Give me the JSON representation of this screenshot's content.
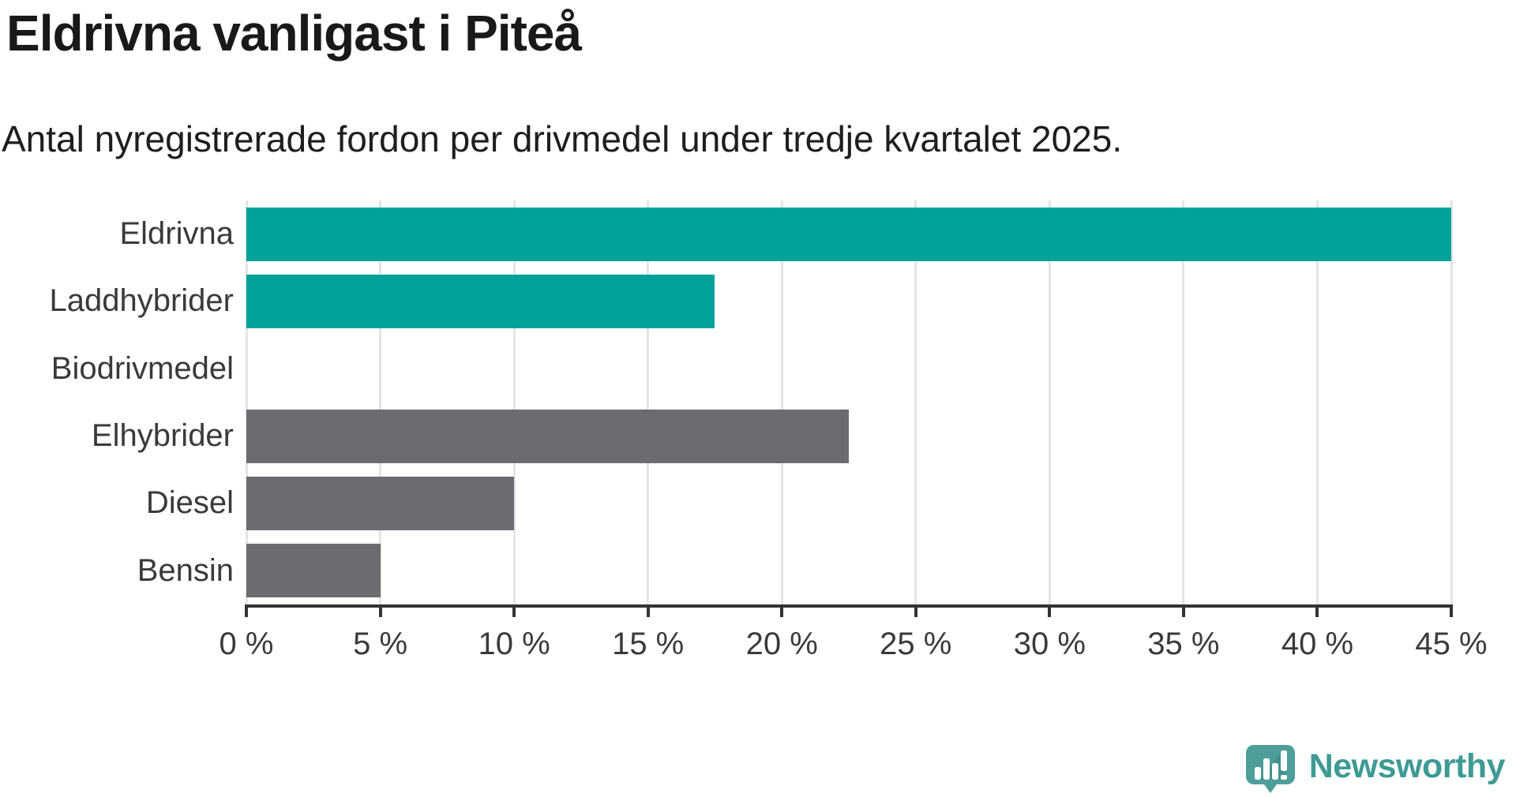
{
  "header": {
    "title": "Eldrivna vanligast i Piteå",
    "subtitle": "Antal nyregistrerade fordon per drivmedel under tredje kvartalet 2025."
  },
  "chart_data": {
    "type": "bar",
    "orientation": "horizontal",
    "title": "Eldrivna vanligast i Piteå",
    "subtitle": "Antal nyregistrerade fordon per drivmedel under tredje kvartalet 2025.",
    "categories": [
      "Eldrivna",
      "Laddhybrider",
      "Biodrivmedel",
      "Elhybrider",
      "Diesel",
      "Bensin"
    ],
    "values": [
      45,
      17.5,
      0,
      22.5,
      10,
      5
    ],
    "unit": "%",
    "xlim": [
      0,
      45
    ],
    "xticks": [
      0,
      5,
      10,
      15,
      20,
      25,
      30,
      35,
      40,
      45
    ],
    "xtick_labels": [
      "0 %",
      "5 %",
      "10 %",
      "15 %",
      "20 %",
      "25 %",
      "30 %",
      "35 %",
      "40 %",
      "45 %"
    ],
    "grid": true,
    "legend": "none",
    "bar_colors": [
      "#00a19a",
      "#00a19a",
      "#00a19a",
      "#6b6b70",
      "#6b6b70",
      "#6b6b70"
    ],
    "accent_color": "#00a19a",
    "muted_color": "#6b6b70",
    "grid_color": "#e4e4e4",
    "axis_color": "#333333",
    "label_color": "#3a3a3a"
  },
  "branding": {
    "logo_text": "Newsworthy",
    "logo_icon": "newsworthy-speech-bubble-chart-icon",
    "icon_color": "#4d9e99",
    "icon_shadow_color": "#35827d",
    "icon_glyph_color": "#ffffff",
    "text_color": "#3e9a94"
  }
}
